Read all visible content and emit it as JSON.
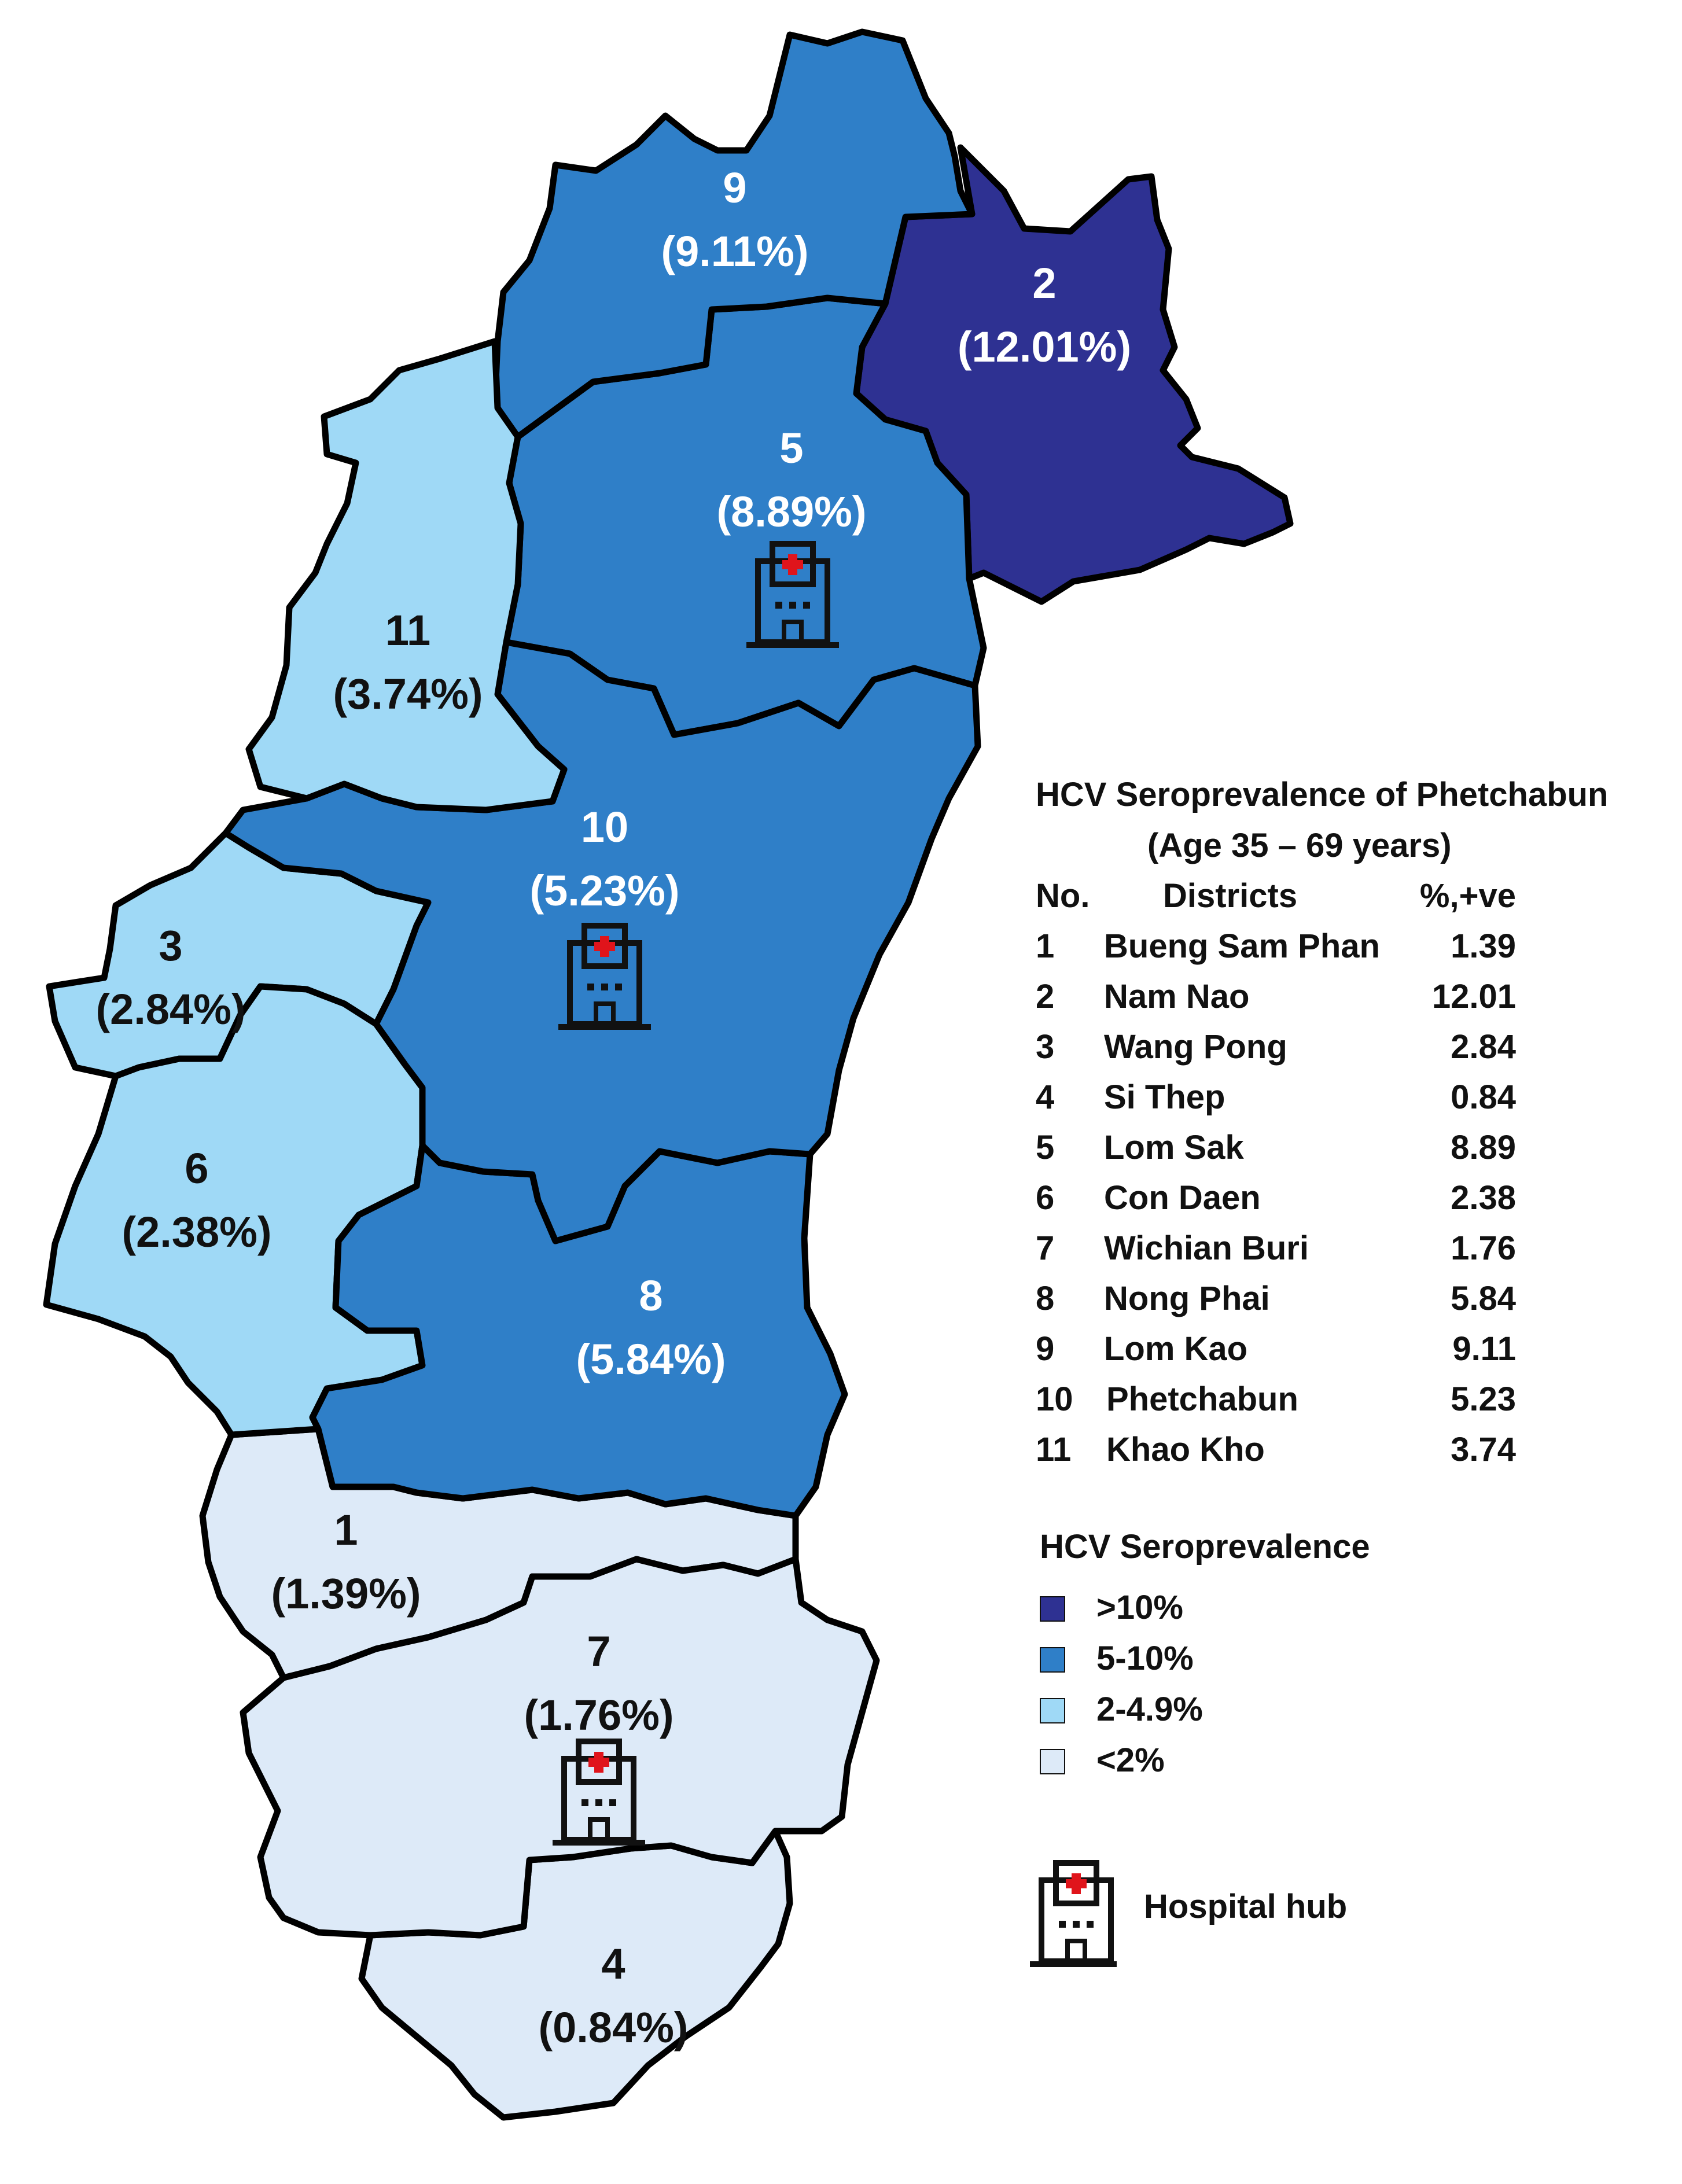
{
  "colors": {
    "gt10": "#2e3192",
    "5_10": "#2f7fc8",
    "2_4_9": "#9fd9f6",
    "lt2": "#ddeaf8",
    "hospital_cross": "#e0141b"
  },
  "districts": [
    {
      "no": "1",
      "name": "Bueng Sam Phan",
      "pct": "1.39",
      "label_num": "1",
      "label_pct": "(1.39%)",
      "class": "lt2",
      "hospital": false
    },
    {
      "no": "2",
      "name": "Nam Nao",
      "pct": "12.01",
      "label_num": "2",
      "label_pct": "(12.01%)",
      "class": "gt10",
      "hospital": false
    },
    {
      "no": "3",
      "name": "Wang Pong",
      "pct": "2.84",
      "label_num": "3",
      "label_pct": "(2.84%)",
      "class": "2_4_9",
      "hospital": false
    },
    {
      "no": "4",
      "name": "Si Thep",
      "pct": "0.84",
      "label_num": "4",
      "label_pct": "(0.84%)",
      "class": "lt2",
      "hospital": false
    },
    {
      "no": "5",
      "name": "Lom Sak",
      "pct": "8.89",
      "label_num": "5",
      "label_pct": "(8.89%)",
      "class": "5_10",
      "hospital": true
    },
    {
      "no": "6",
      "name": "Con Daen",
      "pct": "2.38",
      "label_num": "6",
      "label_pct": "(2.38%)",
      "class": "2_4_9",
      "hospital": false
    },
    {
      "no": "7",
      "name": "Wichian Buri",
      "pct": "1.76",
      "label_num": "7",
      "label_pct": "(1.76%)",
      "class": "lt2",
      "hospital": true
    },
    {
      "no": "8",
      "name": "Nong Phai",
      "pct": "5.84",
      "label_num": "8",
      "label_pct": "(5.84%)",
      "class": "5_10",
      "hospital": false
    },
    {
      "no": "9",
      "name": "Lom Kao",
      "pct": "9.11",
      "label_num": "9",
      "label_pct": "(9.11%)",
      "class": "5_10",
      "hospital": false
    },
    {
      "no": "10",
      "name": "Phetchabun",
      "pct": "5.23",
      "label_num": "10",
      "label_pct": "(5.23%)",
      "class": "5_10",
      "hospital": true
    },
    {
      "no": "11",
      "name": "Khao Kho",
      "pct": "3.74",
      "label_num": "11",
      "label_pct": "(3.74%)",
      "class": "2_4_9",
      "hospital": false
    }
  ],
  "legend": {
    "title_line1": "HCV Seroprevalence of Phetchabun",
    "title_line2": "(Age 35 – 69 years)",
    "col_no": "No.",
    "col_districts": "Districts",
    "col_pct": "%,+ve",
    "scale_title": "HCV Seroprevalence",
    "scale": [
      {
        "label": ">10%",
        "color_key": "gt10"
      },
      {
        "label": "5-10%",
        "color_key": "5_10"
      },
      {
        "label": "2-4.9%",
        "color_key": "2_4_9"
      },
      {
        "label": "<2%",
        "color_key": "lt2"
      }
    ],
    "hospital_label": "Hospital hub",
    "hospital_icon": "hospital-icon"
  }
}
